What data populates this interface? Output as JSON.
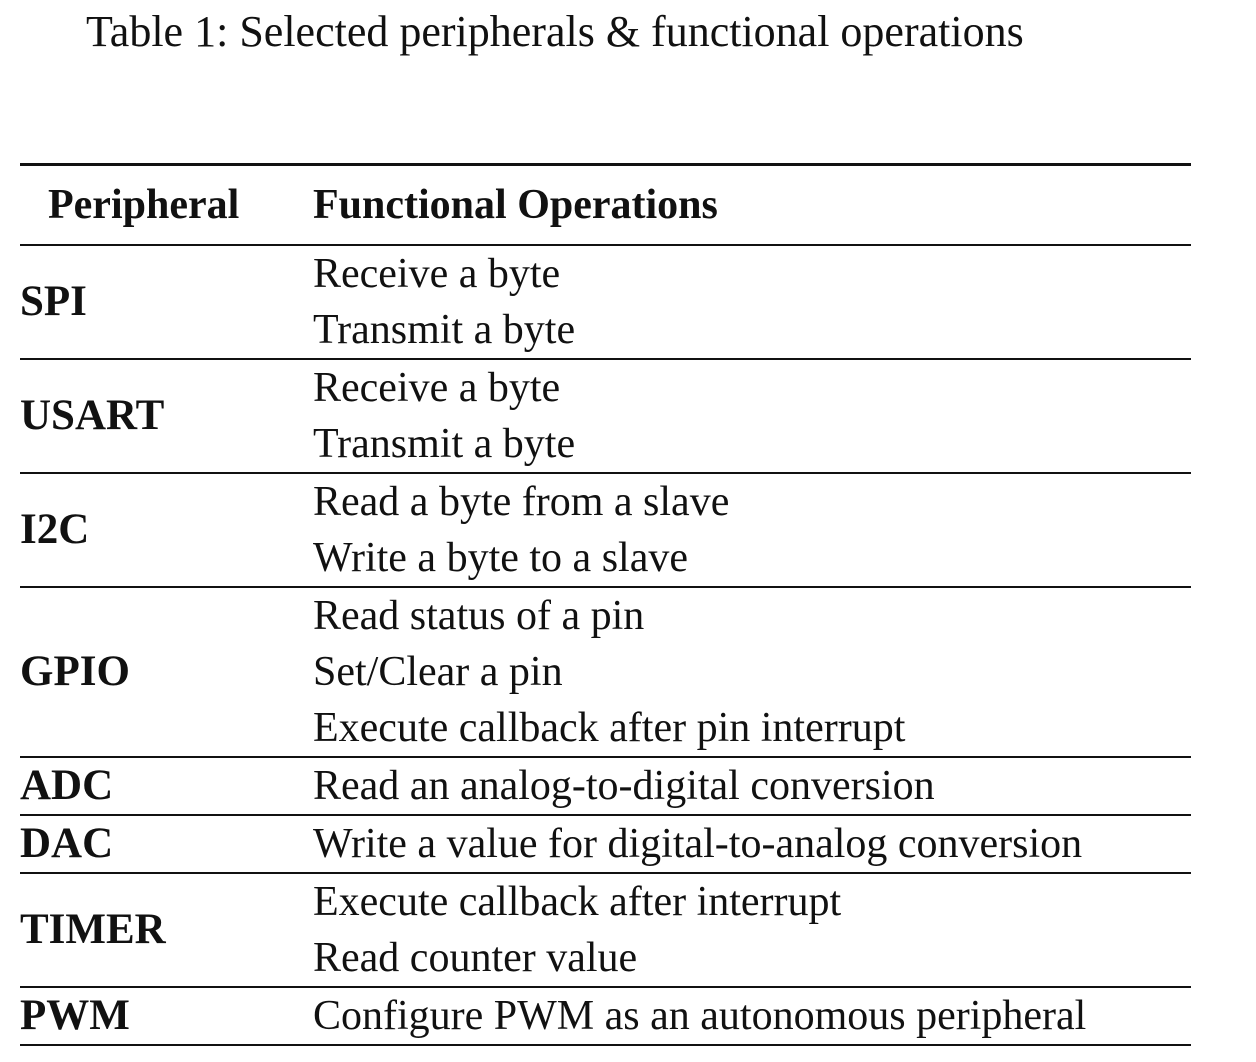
{
  "caption": "Table 1: Selected peripherals & functional operations",
  "table": {
    "headers": {
      "peripheral": "Peripheral",
      "operations": "Functional Operations"
    },
    "rows": [
      {
        "peripheral": "SPI",
        "operations": [
          "Receive a byte",
          "Transmit a byte"
        ]
      },
      {
        "peripheral": "USART",
        "operations": [
          "Receive a byte",
          "Transmit a byte"
        ]
      },
      {
        "peripheral": "I2C",
        "operations": [
          "Read a byte from a slave",
          "Write a byte to a slave"
        ]
      },
      {
        "peripheral": "GPIO",
        "operations": [
          "Read status of a pin",
          "Set/Clear a pin",
          "Execute callback after pin interrupt"
        ]
      },
      {
        "peripheral": "ADC",
        "operations": [
          "Read an analog-to-digital conversion"
        ]
      },
      {
        "peripheral": "DAC",
        "operations": [
          "Write a value for digital-to-analog conversion"
        ]
      },
      {
        "peripheral": "TIMER",
        "operations": [
          "Execute callback after interrupt",
          "Read counter value"
        ]
      },
      {
        "peripheral": "PWM",
        "operations": [
          "Configure PWM as an autonomous peripheral"
        ]
      }
    ]
  }
}
